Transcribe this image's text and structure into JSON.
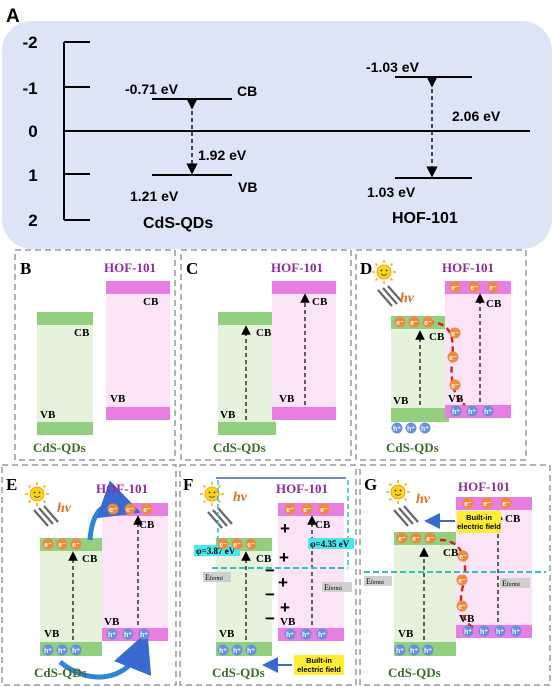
{
  "panelA": {
    "letter": "A",
    "ticks": [
      "-2",
      "-1",
      "0",
      "1",
      "2"
    ],
    "cds": {
      "cb_value": "-0.71 eV",
      "cb_label": "CB",
      "gap": "1.92 eV",
      "vb_value": "1.21 eV",
      "vb_label": "VB",
      "name": "CdS-QDs"
    },
    "hof": {
      "cb_value": "-1.03 eV",
      "gap": "2.06 eV",
      "vb_value": "1.03 eV",
      "name": "HOF-101"
    }
  },
  "labels": {
    "cds": "CdS-QDs",
    "hof": "HOF-101",
    "cb": "CB",
    "vb": "VB",
    "e": "e⁻",
    "h": "h⁺",
    "hv": "hν"
  },
  "panelF": {
    "phi_cds": "φ=3.87 eV",
    "phi_hof": "φ=4.35 eV",
    "efermi_e": "E",
    "efermi_sub": "fermi",
    "field_line1": "Built-in",
    "field_line2": "electric field"
  },
  "panelG": {
    "field_line1": "Built-in",
    "field_line2": "electric field"
  },
  "colors": {
    "panel_bg": "#dbe5f5",
    "green": "#92cf7f",
    "green_light": "#e6f2dc",
    "pink": "#e97ee2",
    "pink_light": "#fbe4f7",
    "electron": "#ee8a3c",
    "hole": "#6a8fe0",
    "purple": "#8a2d9e",
    "olive": "#3f6b2c",
    "cyan": "#30c0c0",
    "red_dash": "#cc2222",
    "yellow": "#ffee33"
  }
}
